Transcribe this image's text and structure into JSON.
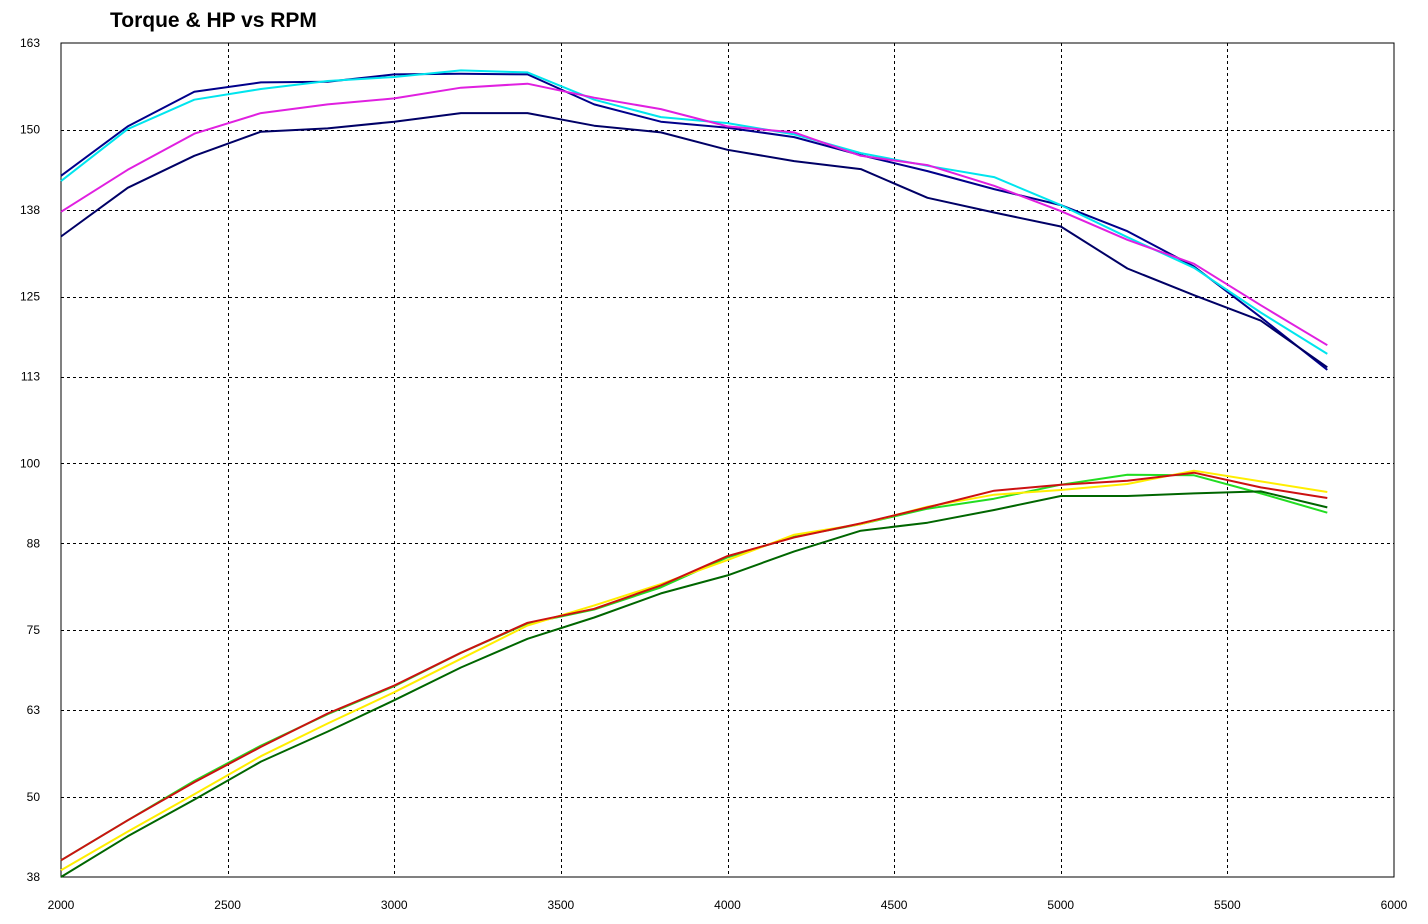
{
  "chart_data": {
    "type": "line",
    "title": "Torque & HP vs RPM",
    "xlabel": "",
    "ylabel": "",
    "xlim": [
      2000,
      6000
    ],
    "ylim": [
      38,
      163
    ],
    "x_ticks": [
      2000,
      2500,
      3000,
      3500,
      4000,
      4500,
      5000,
      5500,
      6000
    ],
    "y_ticks": [
      38,
      50,
      63,
      75,
      88,
      100,
      113,
      125,
      138,
      150,
      163
    ],
    "grid": true,
    "x": [
      2000,
      2200,
      2400,
      2600,
      2800,
      3000,
      3200,
      3400,
      3600,
      3800,
      4000,
      4200,
      4400,
      4600,
      4800,
      5000,
      5200,
      5400,
      5600,
      5800
    ],
    "series": [
      {
        "color": "#00008b",
        "values": [
          143.1,
          150.5,
          155.7,
          157.1,
          157.2,
          158.3,
          158.4,
          158.3,
          153.8,
          151.2,
          150.3,
          148.9,
          146.2,
          143.8,
          141.1,
          138.7,
          134.8,
          129.5,
          121.9,
          114.0
        ]
      },
      {
        "color": "#00e5ee",
        "values": [
          142.3,
          150.1,
          154.5,
          156.1,
          157.3,
          157.9,
          158.9,
          158.6,
          154.5,
          151.9,
          151.0,
          149.3,
          146.5,
          144.6,
          142.9,
          138.7,
          133.9,
          129.3,
          122.6,
          116.4
        ]
      },
      {
        "color": "#e020e0",
        "values": [
          137.7,
          144.0,
          149.4,
          152.5,
          153.8,
          154.7,
          156.3,
          156.9,
          154.8,
          153.1,
          150.5,
          149.6,
          146.1,
          144.7,
          141.6,
          137.8,
          133.5,
          129.9,
          123.7,
          117.7
        ]
      },
      {
        "color": "#000066",
        "values": [
          134.0,
          141.3,
          146.1,
          149.7,
          150.2,
          151.2,
          152.5,
          152.5,
          150.6,
          149.6,
          147.0,
          145.3,
          144.1,
          139.8,
          137.6,
          135.5,
          129.2,
          125.2,
          121.4,
          114.4
        ]
      },
      {
        "color": "#22dd22",
        "values": [
          40.5,
          46.5,
          52.4,
          57.7,
          62.4,
          66.6,
          71.6,
          76.0,
          78.1,
          81.4,
          85.9,
          89.0,
          90.9,
          93.2,
          94.7,
          96.8,
          98.3,
          98.2,
          95.5,
          92.6
        ]
      },
      {
        "color": "#ffee00",
        "values": [
          39.0,
          44.8,
          50.4,
          56.1,
          61.0,
          65.7,
          70.7,
          75.7,
          78.7,
          81.9,
          85.5,
          89.3,
          90.9,
          93.5,
          95.3,
          96.0,
          96.9,
          98.9,
          97.3,
          95.7
        ]
      },
      {
        "color": "#cc1111",
        "values": [
          40.5,
          46.5,
          52.2,
          57.5,
          62.5,
          66.7,
          71.6,
          76.1,
          78.2,
          81.7,
          86.1,
          88.9,
          91.0,
          93.4,
          95.9,
          96.8,
          97.4,
          98.6,
          96.4,
          94.8
        ]
      },
      {
        "color": "#006600",
        "values": [
          38.0,
          44.1,
          49.6,
          55.3,
          59.8,
          64.5,
          69.4,
          73.7,
          76.9,
          80.5,
          83.2,
          86.8,
          89.9,
          91.1,
          93.0,
          95.1,
          95.1,
          95.5,
          95.8,
          93.4
        ]
      }
    ]
  }
}
